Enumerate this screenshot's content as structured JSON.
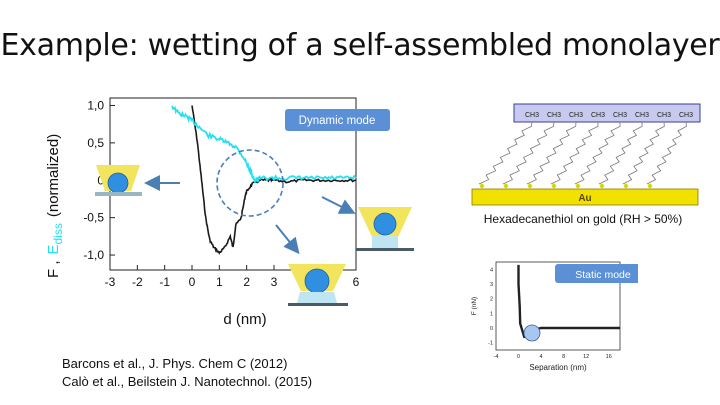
{
  "slide": {
    "title": "Example: wetting of a self-assembled monolayer",
    "references": [
      "Barcons et al., J. Phys. Chem C (2012)",
      "Calò et al., Beilstein J. Nanotechnol. (2015)"
    ]
  },
  "main_plot": {
    "badge": "Dynamic mode",
    "ylabel_f": "F ,",
    "ylabel_e": "E",
    "ylabel_e_sub": "diss",
    "ylabel_tail": "(normalized)",
    "xlabel": "d (nm)",
    "x_ticks": [
      "-3",
      "-2",
      "-1",
      "0",
      "1",
      "2",
      "3",
      "4",
      "5",
      "6"
    ],
    "y_ticks": [
      "1,0",
      "0,5",
      "0",
      "-0,5",
      "-1,0"
    ],
    "colors": {
      "force": "#1a1a1a",
      "dissipation": "#26e0f0",
      "badge": "#5b8fd6",
      "drop": "#2f8fe0",
      "meniscus": "#f2e45c"
    }
  },
  "sam_diagram": {
    "methyl_label": "CH3",
    "substrate_label": "Au",
    "caption": "Hexadecanethiol on gold (RH > 50%)"
  },
  "static_plot": {
    "badge": "Static mode",
    "ylabel": "F (nN)",
    "xlabel": "Separation (nm)",
    "x_ticks": [
      "-4",
      "0",
      "4",
      "8",
      "12",
      "16"
    ],
    "y_ticks": [
      "4",
      "3",
      "2",
      "1",
      "0",
      "-1"
    ]
  },
  "chart_data": [
    {
      "type": "line",
      "xlabel": "d (nm)",
      "ylabel": "F , E diss (normalized)",
      "xlim": [
        -3,
        6
      ],
      "ylim": [
        -1.2,
        1.1
      ],
      "series": [
        {
          "x": [
            0.0,
            0.2,
            0.35,
            0.5,
            0.65,
            0.8,
            1.0,
            1.2,
            1.4,
            1.5,
            1.6,
            1.8,
            1.95,
            2.0,
            2.2,
            2.5,
            2.8,
            3.0,
            3.5,
            4.0,
            4.5,
            5.0,
            5.5,
            6.0
          ],
          "y": [
            1.0,
            0.5,
            0.0,
            -0.5,
            -0.8,
            -0.9,
            -0.97,
            -0.9,
            -0.75,
            -0.9,
            -0.6,
            -0.5,
            -0.2,
            -0.15,
            -0.05,
            0.0,
            0.0,
            0.0,
            -0.02,
            0.0,
            0.0,
            0.0,
            0.0,
            0.0
          ]
        },
        {
          "x": [
            -0.75,
            -0.5,
            -0.2,
            0.0,
            0.3,
            0.6,
            1.0,
            1.3,
            1.6,
            1.9,
            2.1,
            2.3,
            2.5,
            3.0,
            3.5,
            4.0,
            4.5,
            5.0,
            5.5,
            6.0
          ],
          "y": [
            1.0,
            0.9,
            0.85,
            0.8,
            0.7,
            0.6,
            0.55,
            0.5,
            0.45,
            0.3,
            0.15,
            0.0,
            0.03,
            0.03,
            0.03,
            0.03,
            0.03,
            0.03,
            0.03,
            0.03
          ]
        }
      ]
    },
    {
      "type": "line",
      "xlabel": "Separation (nm)",
      "ylabel": "F (nN)",
      "xlim": [
        -4,
        18
      ],
      "ylim": [
        -1.5,
        4.5
      ],
      "series": [
        {
          "x": [
            0.0,
            0.0,
            0.2,
            0.3,
            1.0,
            2.0,
            3.0,
            4.0,
            8.0,
            12.0,
            16.0,
            18.0
          ],
          "y": [
            4.3,
            3.0,
            1.5,
            0.3,
            -0.6,
            -0.5,
            -0.1,
            0.0,
            0.0,
            0.0,
            0.0,
            0.0
          ]
        }
      ]
    }
  ]
}
